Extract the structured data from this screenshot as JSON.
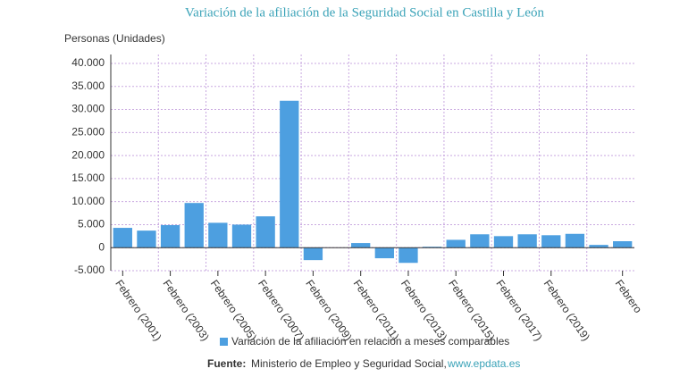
{
  "chart_data": {
    "type": "bar",
    "title": "Variación de la afiliación de la Seguridad Social en Castilla y León",
    "y_label": "Personas (Unidades)",
    "categories": [
      "Febrero (2001)",
      null,
      "Febrero (2003)",
      null,
      "Febrero (2005)",
      null,
      "Febrero (2007)",
      null,
      "Febrero (2009)",
      null,
      "Febrero (2011)",
      null,
      "Febrero (2013)",
      null,
      "Febrero (2015)",
      null,
      "Febrero (2017)",
      null,
      "Febrero (2019)",
      null,
      null,
      "Febrero"
    ],
    "series": [
      {
        "name": "Variación de la afiliación en relación a meses comparables",
        "color": "#4d9fe0",
        "values": [
          4300,
          3700,
          4900,
          9700,
          5400,
          5000,
          6800,
          31900,
          -2700,
          0,
          1000,
          -2300,
          -3300,
          200,
          1700,
          2900,
          2500,
          2900,
          2700,
          3000,
          600,
          1400
        ]
      }
    ],
    "ylim": [
      -5000,
      40000
    ],
    "yticks": [
      {
        "value": -5000,
        "label": "-5.000"
      },
      0,
      {
        "value": 5000,
        "label": "5.000"
      },
      {
        "value": 10000,
        "label": "10.000"
      },
      {
        "value": 15000,
        "label": "15.000"
      },
      {
        "value": 20000,
        "label": "20.000"
      },
      {
        "value": 25000,
        "label": "25.000"
      },
      {
        "value": 30000,
        "label": "30.000"
      },
      {
        "value": 35000,
        "label": "35.000"
      },
      {
        "value": 40000,
        "label": "40.000"
      }
    ],
    "grid": true,
    "source_label": "Fuente:",
    "source": "Ministerio de Empleo y Seguridad Social,",
    "source_link": "www.epdata.es"
  }
}
